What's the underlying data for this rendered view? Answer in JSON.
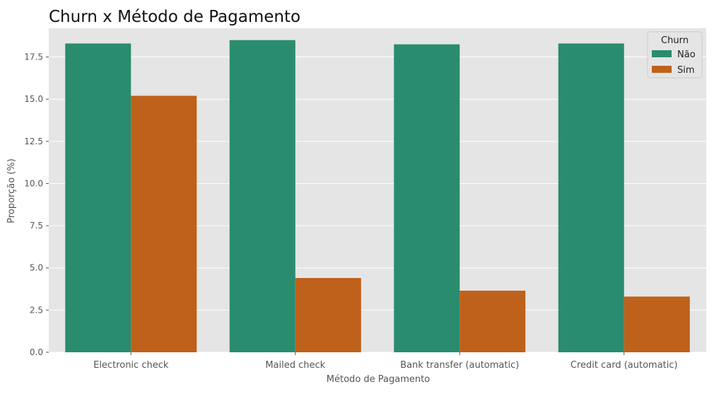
{
  "chart_data": {
    "type": "bar",
    "title": "Churn x Método de Pagamento",
    "xlabel": "Método de Pagamento",
    "ylabel": "Proporção (%)",
    "categories": [
      "Electronic check",
      "Mailed check",
      "Bank transfer (automatic)",
      "Credit card (automatic)"
    ],
    "series": [
      {
        "name": "Não",
        "values": [
          18.3,
          18.5,
          18.25,
          18.3
        ],
        "color": "#2a8c6e"
      },
      {
        "name": "Sim",
        "values": [
          15.2,
          4.4,
          3.65,
          3.3
        ],
        "color": "#be611b"
      }
    ],
    "ylim": [
      0,
      19.2
    ],
    "yticks": [
      0.0,
      2.5,
      5.0,
      7.5,
      10.0,
      12.5,
      15.0,
      17.5
    ],
    "ytick_labels": [
      "0.0",
      "2.5",
      "5.0",
      "7.5",
      "10.0",
      "12.5",
      "15.0",
      "17.5"
    ],
    "legend": {
      "title": "Churn",
      "placement": "top-right"
    },
    "grid": true,
    "background": "#e5e5e5"
  }
}
